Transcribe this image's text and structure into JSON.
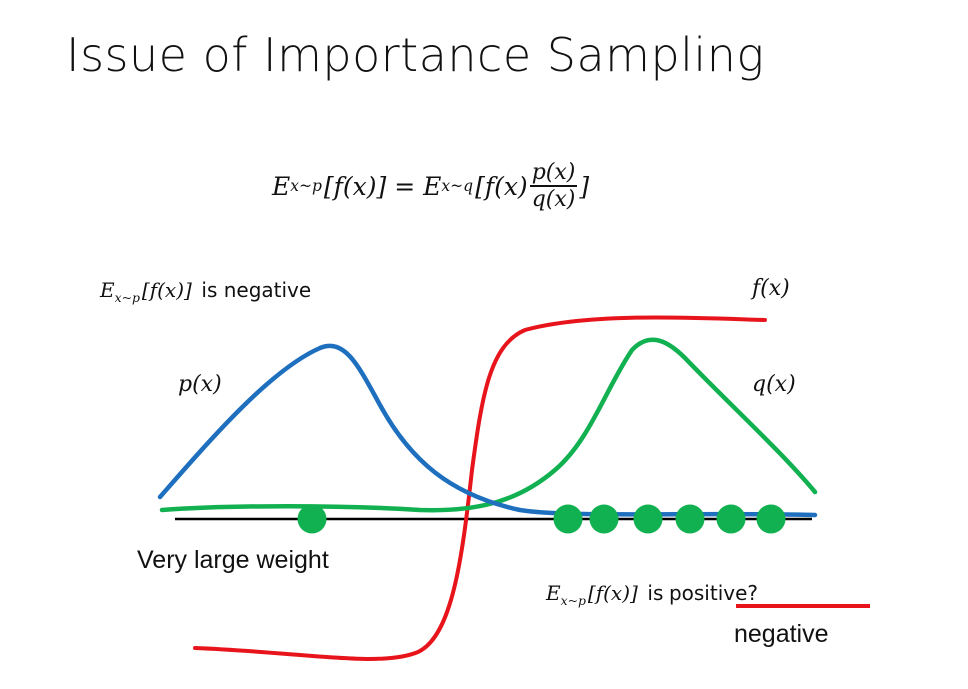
{
  "slide": {
    "title": "Issue of Importance Sampling",
    "formula": {
      "lhs_E": "E",
      "lhs_sub": "x~p",
      "lhs_body": "[f(x)] =",
      "rhs_E": "E",
      "rhs_sub": "x~q",
      "rhs_body": "[f(x)",
      "frac_num": "p(x)",
      "frac_den": "q(x)",
      "close": "]"
    },
    "labels": {
      "neg_E": "E",
      "neg_sub": "x~p",
      "neg_body": "[f(x)]",
      "neg_text": "is negative",
      "fx": "f(x)",
      "px": "p(x)",
      "qx": "q(x)",
      "weight": "Very large weight",
      "pos_E": "E",
      "pos_sub": "x~p",
      "pos_body": "[f(x)]",
      "pos_is": "is",
      "pos_word": "positive?",
      "negative": "negative"
    },
    "colors": {
      "p_curve": "#1f6fbf",
      "q_curve": "#11b050",
      "f_curve": "#e8141b",
      "axis": "#000000",
      "samples": "#11b050",
      "strike": "#e8141b"
    },
    "samples": {
      "left_count": 1,
      "right_count": 6
    }
  }
}
